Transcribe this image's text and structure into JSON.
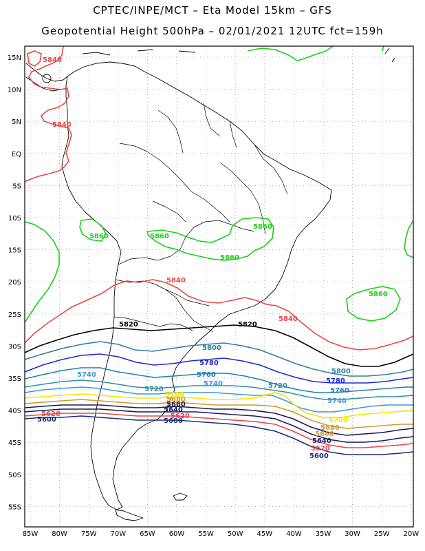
{
  "title": {
    "line1": "CPTEC/INPE/MCT –  Eta Model 15km – GFS",
    "line2": "Geopotential Height 500hPa – 02/01/2021 12UTC fct=159h"
  },
  "axes": {
    "lat_labels": [
      "15N",
      "10N",
      "5N",
      "EQ",
      "5S",
      "10S",
      "15S",
      "20S",
      "25S",
      "30S",
      "35S",
      "40S",
      "45S",
      "50S",
      "55S"
    ],
    "lon_labels": [
      "85W",
      "80W",
      "75W",
      "70W",
      "65W",
      "60W",
      "55W",
      "50W",
      "45W",
      "40W",
      "35W",
      "30W",
      "25W",
      "20W"
    ],
    "grid": "dotted"
  },
  "colors": {
    "c5600": "#1b2a7a",
    "c5620": "#e84646",
    "c5640": "#1a1a5c",
    "c5680": "#d09a2a",
    "c5700": "#f2e600",
    "c5720": "#3c9bd0",
    "c5740": "#2f8fa7",
    "c5760": "#1a2bd6",
    "c5780": "#1f7fb0",
    "c5800": "#2e7fa0",
    "c5820": "#000000",
    "c5840": "#e84646",
    "c5860": "#18d018",
    "land": "#000000"
  },
  "contour_labels": {
    "north_5840_a": "5840",
    "north_5840_b": "5840",
    "pacific_5860": "5860",
    "bolivia_5860": "5860",
    "brazil_5860_a": "5860",
    "brazil_5860_b": "5860",
    "atlantic_5860": "5860",
    "sub_5840_a": "5840",
    "sub_5840_b": "5840",
    "c5820_a": "5820",
    "c5820_b": "5820",
    "c5800_a": "5800",
    "c5800_b": "5800",
    "c5780_a": "5780",
    "c5780_b": "5780",
    "c5760_a": "5760",
    "c5760_b": "5760",
    "c5740_a": "5740",
    "c5740_b": "5740",
    "c5740_c": "5740",
    "c5720_a": "5720",
    "c5720_b": "5720",
    "c5700_a": "5700",
    "c5700_b": "5700",
    "c5680_a": "5680",
    "c5680_b": "5680",
    "c5660_a": "5660",
    "c5660_b": "5660",
    "c5640_a": "5640",
    "c5640_b": "5640",
    "c5620_a": "5620",
    "c5620_b": "5620",
    "c5620_c": "5620",
    "c5600_a": "5600",
    "c5600_b": "5600",
    "c5600_c": "5600"
  }
}
